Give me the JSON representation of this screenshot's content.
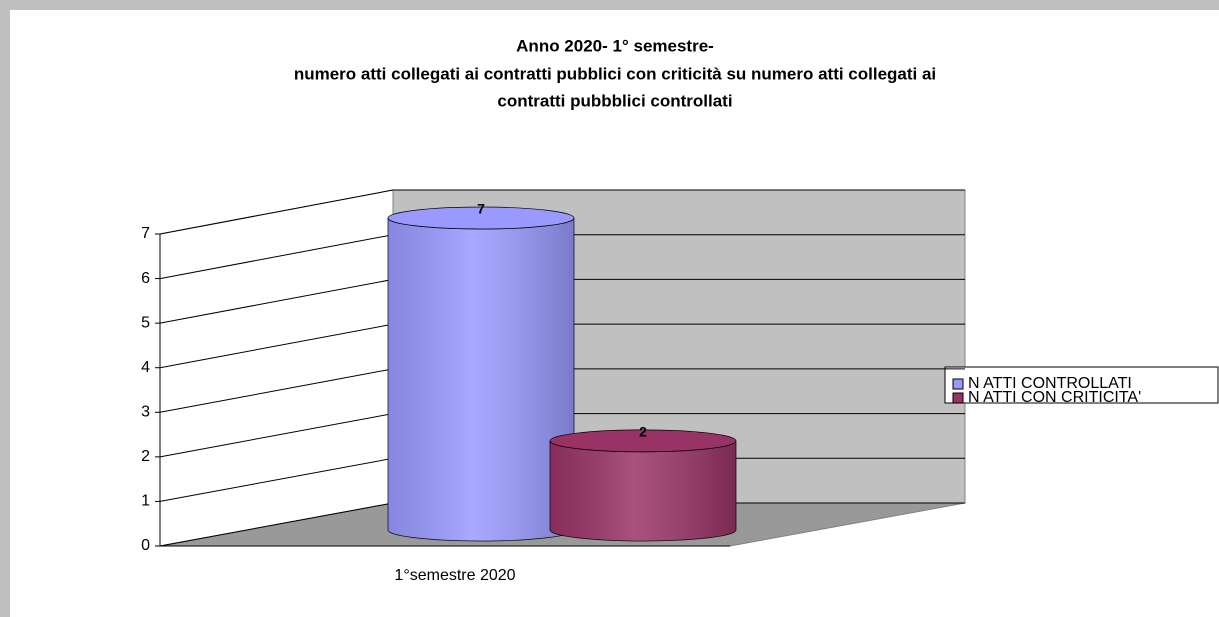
{
  "chart_data": {
    "type": "bar3d-cylinder",
    "title": [
      "Anno 2020- 1° semestre-",
      "numero atti collegati ai contratti pubblici con criticità su numero atti collegati ai",
      "contratti pubbblici controllati"
    ],
    "categories": [
      "1°semestre 2020"
    ],
    "series": [
      {
        "name": "N ATTI CONTROLLATI",
        "color": "#9999ff",
        "values": [
          7
        ]
      },
      {
        "name": "N ATTI CON CRITICITA'",
        "color": "#993366",
        "values": [
          2
        ]
      }
    ],
    "ylim": [
      0,
      7
    ],
    "yticks": [
      0,
      1,
      2,
      3,
      4,
      5,
      6,
      7
    ],
    "grid": true,
    "legend": "right"
  }
}
